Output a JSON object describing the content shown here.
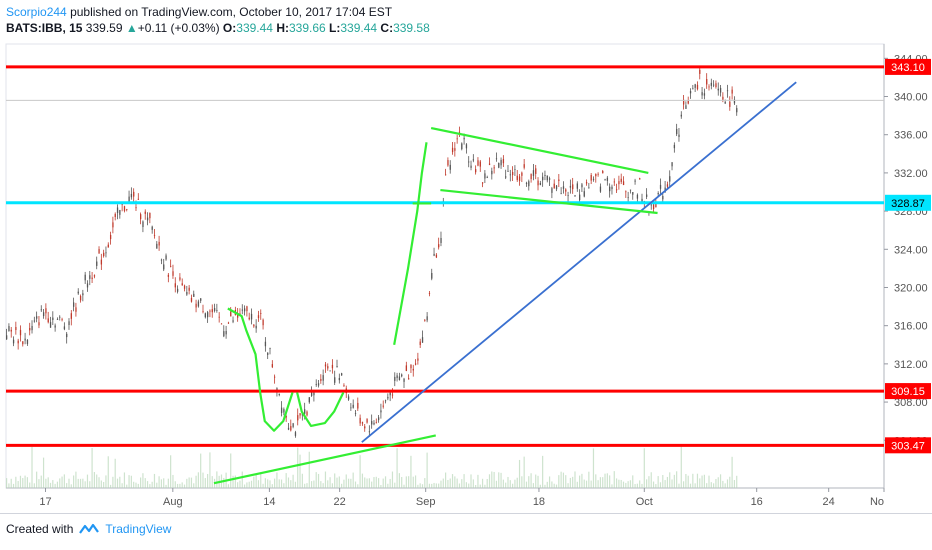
{
  "header": {
    "author": "Scorpio244",
    "published_text": "published on TradingView.com, October 10, 2017 17:04 EST",
    "symbol": "BATS:IBB, 15",
    "last": "339.59",
    "change_arrow": "▲",
    "change": "+0.11 (+0.03%)",
    "o_label": "O:",
    "o_val": "339.44",
    "h_label": "H:",
    "h_val": "339.66",
    "l_label": "L:",
    "l_val": "339.44",
    "c_label": "C:",
    "c_val": "339.58"
  },
  "footer": {
    "created_with": "Created with",
    "brand": "TradingView"
  },
  "colors": {
    "red_line": "#ff0000",
    "cyan_line": "#00e5ff",
    "green_line": "#33ee33",
    "blue_line": "#3a70d0",
    "candle_up": "#555555",
    "candle_down": "#c0392b",
    "volume": "#b9d7b9"
  },
  "chart_data": {
    "type": "candlestick",
    "y_ticks": [
      344,
      340,
      336,
      332,
      328,
      324,
      320,
      316,
      312,
      308,
      304
    ],
    "x_ticks": [
      "17",
      "Aug",
      "14",
      "22",
      "Sep",
      "18",
      "Oct",
      "16",
      "24",
      "No"
    ],
    "ylim": [
      299,
      345.5
    ],
    "price_path": [
      [
        0,
        315.5
      ],
      [
        4,
        314.5
      ],
      [
        8,
        317.5
      ],
      [
        13,
        316
      ],
      [
        17,
        320.5
      ],
      [
        21,
        323.5
      ],
      [
        24,
        327.5
      ],
      [
        27,
        329.5
      ],
      [
        31,
        326.5
      ],
      [
        35,
        322
      ],
      [
        39,
        319
      ],
      [
        43,
        318
      ],
      [
        47,
        316
      ],
      [
        51,
        317.2
      ],
      [
        55,
        316.5
      ],
      [
        57,
        313
      ],
      [
        59,
        309
      ],
      [
        61,
        306
      ],
      [
        63,
        305.3
      ],
      [
        65,
        307.5
      ],
      [
        67,
        309.5
      ],
      [
        68,
        311
      ],
      [
        70,
        312
      ],
      [
        73,
        310
      ],
      [
        75,
        307.5
      ],
      [
        77,
        306
      ],
      [
        79,
        305.5
      ],
      [
        81,
        307
      ],
      [
        83,
        309
      ],
      [
        85,
        310.5
      ],
      [
        87,
        311
      ],
      [
        89,
        313
      ],
      [
        91,
        317
      ],
      [
        92,
        322
      ],
      [
        94,
        326
      ],
      [
        95,
        331
      ],
      [
        97,
        335
      ],
      [
        98,
        336
      ],
      [
        100,
        334
      ],
      [
        103,
        331.5
      ],
      [
        106,
        333
      ],
      [
        110,
        332
      ],
      [
        114,
        331.5
      ],
      [
        118,
        331
      ],
      [
        122,
        330
      ],
      [
        126,
        330.8
      ],
      [
        130,
        331.5
      ],
      [
        134,
        330.2
      ],
      [
        137,
        330.5
      ],
      [
        139,
        328.3
      ],
      [
        141,
        329.5
      ],
      [
        143,
        331
      ],
      [
        145,
        336
      ],
      [
        147,
        339.5
      ],
      [
        150,
        341.5
      ],
      [
        152,
        340.5
      ],
      [
        154,
        341
      ],
      [
        156,
        339.8
      ],
      [
        158,
        339.6
      ]
    ],
    "horizontal_levels": [
      {
        "price": 343.1,
        "label": "343.10",
        "color": "red"
      },
      {
        "price": 328.87,
        "label": "328.87",
        "color": "cyan"
      },
      {
        "price": 309.15,
        "label": "309.15",
        "color": "red"
      },
      {
        "price": 303.47,
        "label": "303.47",
        "color": "red"
      }
    ],
    "last_price": 339.59
  }
}
